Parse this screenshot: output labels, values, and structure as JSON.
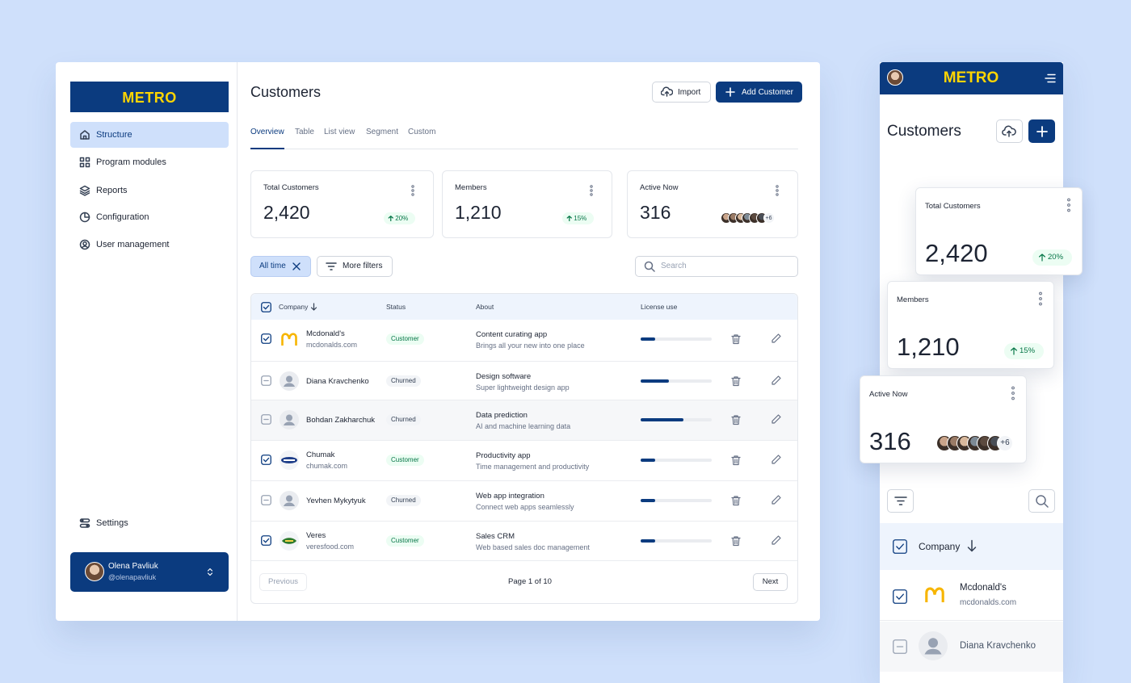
{
  "desktop": {
    "logo": "METRO",
    "nav": [
      "Structure",
      "Program modules",
      "Reports",
      "Configuration",
      "User management"
    ],
    "settings": "Settings",
    "user": {
      "name": "Olena Pavliuk",
      "handle": "@olenapavliuk"
    },
    "title": "Customers",
    "buttons": {
      "import": "Import",
      "add": "Add Customer"
    },
    "tabs": [
      "Overview",
      "Table",
      "List view",
      "Segment",
      "Custom"
    ],
    "stats": [
      {
        "label": "Total Customers",
        "value": "2,420",
        "change": "20%"
      },
      {
        "label": "Members",
        "value": "1,210",
        "change": "15%"
      },
      {
        "label": "Active Now",
        "value": "316",
        "extra": "+6"
      }
    ],
    "filters": {
      "time": "All time",
      "more": "More filters",
      "search": "Search"
    },
    "table": {
      "headers": [
        "Company",
        "Status",
        "About",
        "License use"
      ],
      "rows": [
        {
          "company": "Mcdonald's",
          "sub": "mcdonalds.com",
          "status": "Customer",
          "about": "Content curating app",
          "about_sub": "Brings all your new into one place",
          "license": 20
        },
        {
          "company": "Diana Kravchenko",
          "status": "Churned",
          "about": "Design software",
          "about_sub": "Super lightweight design app",
          "license": 40
        },
        {
          "company": "Bohdan Zakharchuk",
          "status": "Churned",
          "about": "Data prediction",
          "about_sub": "AI and machine learning data",
          "license": 60
        },
        {
          "company": "Chumak",
          "sub": "chumak.com",
          "status": "Customer",
          "about": "Productivity app",
          "about_sub": "Time management and productivity",
          "license": 20
        },
        {
          "company": "Yevhen Mykytyuk",
          "status": "Churned",
          "about": "Web app integration",
          "about_sub": "Connect web apps seamlessly",
          "license": 20
        },
        {
          "company": "Veres",
          "sub": "veresfood.com",
          "status": "Customer",
          "about": "Sales CRM",
          "about_sub": "Web based sales doc management",
          "license": 20
        }
      ]
    },
    "pagination": {
      "previous": "Previous",
      "page": "Page 1 of 10",
      "next": "Next"
    }
  }
}
